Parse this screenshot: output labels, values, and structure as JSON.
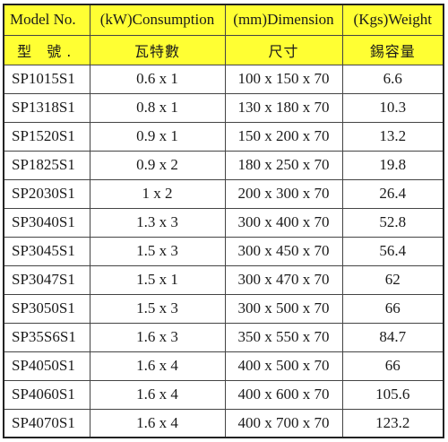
{
  "table": {
    "headers_en": [
      "Model No.",
      "(kW)Consumption",
      "(mm)Dimension",
      "(Kgs)Weight"
    ],
    "headers_zh": [
      "型 號.",
      "瓦特數",
      "尺寸",
      "錫容量"
    ],
    "rows": [
      {
        "model": "SP1015S1",
        "consumption": "0.6 x 1",
        "dimension": "100 x 150 x 70",
        "weight": "6.6"
      },
      {
        "model": "SP1318S1",
        "consumption": "0.8 x 1",
        "dimension": "130 x 180 x 70",
        "weight": "10.3"
      },
      {
        "model": "SP1520S1",
        "consumption": "0.9 x 1",
        "dimension": "150 x 200 x 70",
        "weight": "13.2"
      },
      {
        "model": "SP1825S1",
        "consumption": "0.9 x 2",
        "dimension": "180 x 250 x 70",
        "weight": "19.8"
      },
      {
        "model": "SP2030S1",
        "consumption": "1 x 2",
        "dimension": "200 x 300 x 70",
        "weight": "26.4"
      },
      {
        "model": "SP3040S1",
        "consumption": "1.3 x 3",
        "dimension": "300 x 400 x 70",
        "weight": "52.8"
      },
      {
        "model": "SP3045S1",
        "consumption": "1.5 x 3",
        "dimension": "300 x 450 x 70",
        "weight": "56.4"
      },
      {
        "model": "SP3047S1",
        "consumption": "1.5 x 1",
        "dimension": "300 x 470 x 70",
        "weight": "62"
      },
      {
        "model": "SP3050S1",
        "consumption": "1.5 x 3",
        "dimension": "300 x 500 x 70",
        "weight": "66"
      },
      {
        "model": "SP35S6S1",
        "consumption": "1.6 x 3",
        "dimension": "350 x 550 x 70",
        "weight": "84.7"
      },
      {
        "model": "SP4050S1",
        "consumption": "1.6 x 4",
        "dimension": "400 x 500 x 70",
        "weight": "66"
      },
      {
        "model": "SP4060S1",
        "consumption": "1.6 x 4",
        "dimension": "400 x 600 x 70",
        "weight": "105.6"
      },
      {
        "model": "SP4070S1",
        "consumption": "1.6 x 4",
        "dimension": "400 x 700 x 70",
        "weight": "123.2"
      }
    ]
  },
  "colors": {
    "header_background": "#ffff33",
    "border": "#444444",
    "text": "#1a1a1a"
  }
}
